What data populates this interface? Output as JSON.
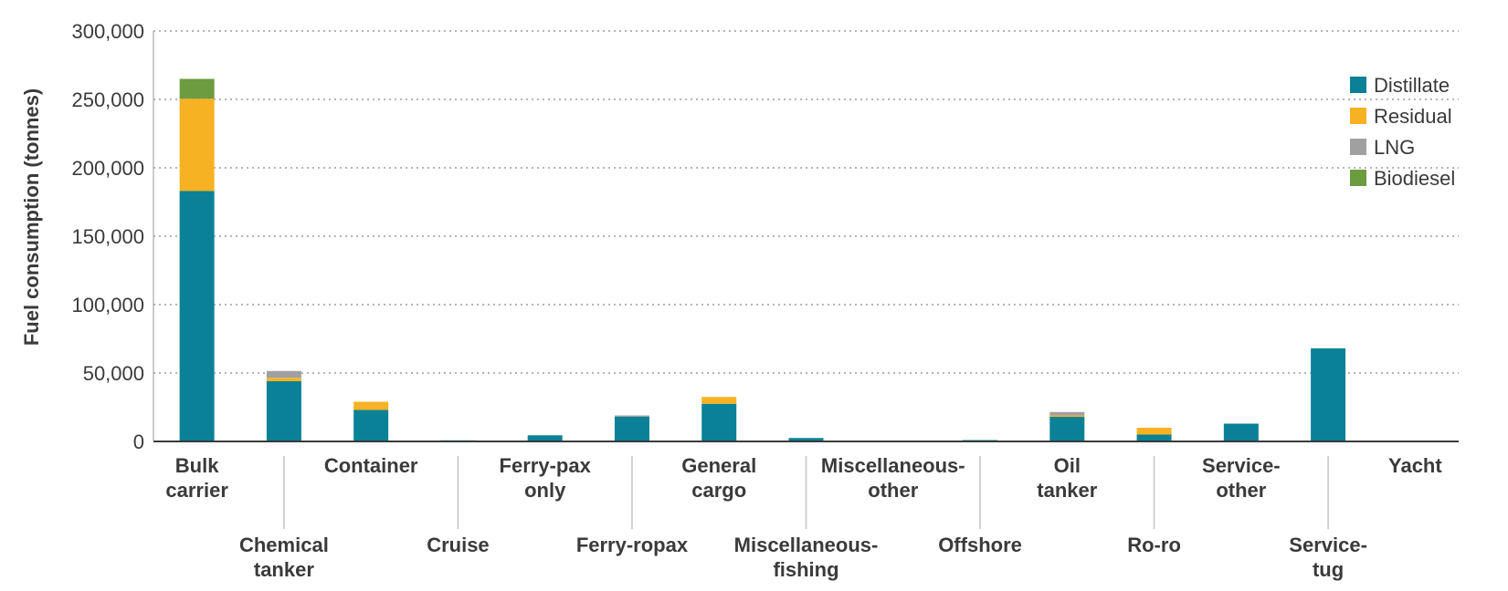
{
  "chart_data": {
    "type": "bar",
    "stacked": true,
    "ylabel": "Fuel consumption (tonnes)",
    "ylim": [
      0,
      300000
    ],
    "yticks": [
      {
        "value": 0,
        "label": "0"
      },
      {
        "value": 50000,
        "label": "50,000"
      },
      {
        "value": 100000,
        "label": "100,000"
      },
      {
        "value": 150000,
        "label": "150,000"
      },
      {
        "value": 200000,
        "label": "200,000"
      },
      {
        "value": 250000,
        "label": "250,000"
      },
      {
        "value": 300000,
        "label": "300,000"
      }
    ],
    "grid": true,
    "legend_position": "top-right",
    "categories": [
      {
        "lines": [
          "Bulk",
          "carrier"
        ]
      },
      {
        "lines": [
          "Chemical",
          "tanker"
        ]
      },
      {
        "lines": [
          "Container"
        ]
      },
      {
        "lines": [
          "Cruise"
        ]
      },
      {
        "lines": [
          "Ferry-pax",
          "only"
        ]
      },
      {
        "lines": [
          "Ferry-ropax"
        ]
      },
      {
        "lines": [
          "General",
          "cargo"
        ]
      },
      {
        "lines": [
          "Miscellaneous-",
          "fishing"
        ]
      },
      {
        "lines": [
          "Miscellaneous-",
          "other"
        ]
      },
      {
        "lines": [
          "Offshore"
        ]
      },
      {
        "lines": [
          "Oil",
          "tanker"
        ]
      },
      {
        "lines": [
          "Ro-ro"
        ]
      },
      {
        "lines": [
          "Service-",
          "other"
        ]
      },
      {
        "lines": [
          "Service-",
          "tug"
        ]
      },
      {
        "lines": [
          "Yacht"
        ]
      }
    ],
    "series": [
      {
        "name": "Distillate",
        "color": "#0a8196",
        "values": [
          183000,
          44000,
          23000,
          800,
          4500,
          18000,
          27500,
          2500,
          500,
          1000,
          18000,
          5000,
          13000,
          68000,
          500
        ]
      },
      {
        "name": "Residual",
        "color": "#f6b223",
        "values": [
          67500,
          2500,
          6000,
          0,
          0,
          0,
          5000,
          0,
          0,
          0,
          1000,
          5000,
          0,
          0,
          0
        ]
      },
      {
        "name": "LNG",
        "color": "#a0a0a3",
        "values": [
          0,
          5000,
          0,
          0,
          0,
          1000,
          0,
          0,
          0,
          0,
          2500,
          0,
          0,
          0,
          0
        ]
      },
      {
        "name": "Biodiesel",
        "color": "#6d9b40",
        "values": [
          14500,
          0,
          0,
          0,
          0,
          0,
          0,
          0,
          0,
          0,
          0,
          0,
          0,
          0,
          0
        ]
      }
    ]
  }
}
